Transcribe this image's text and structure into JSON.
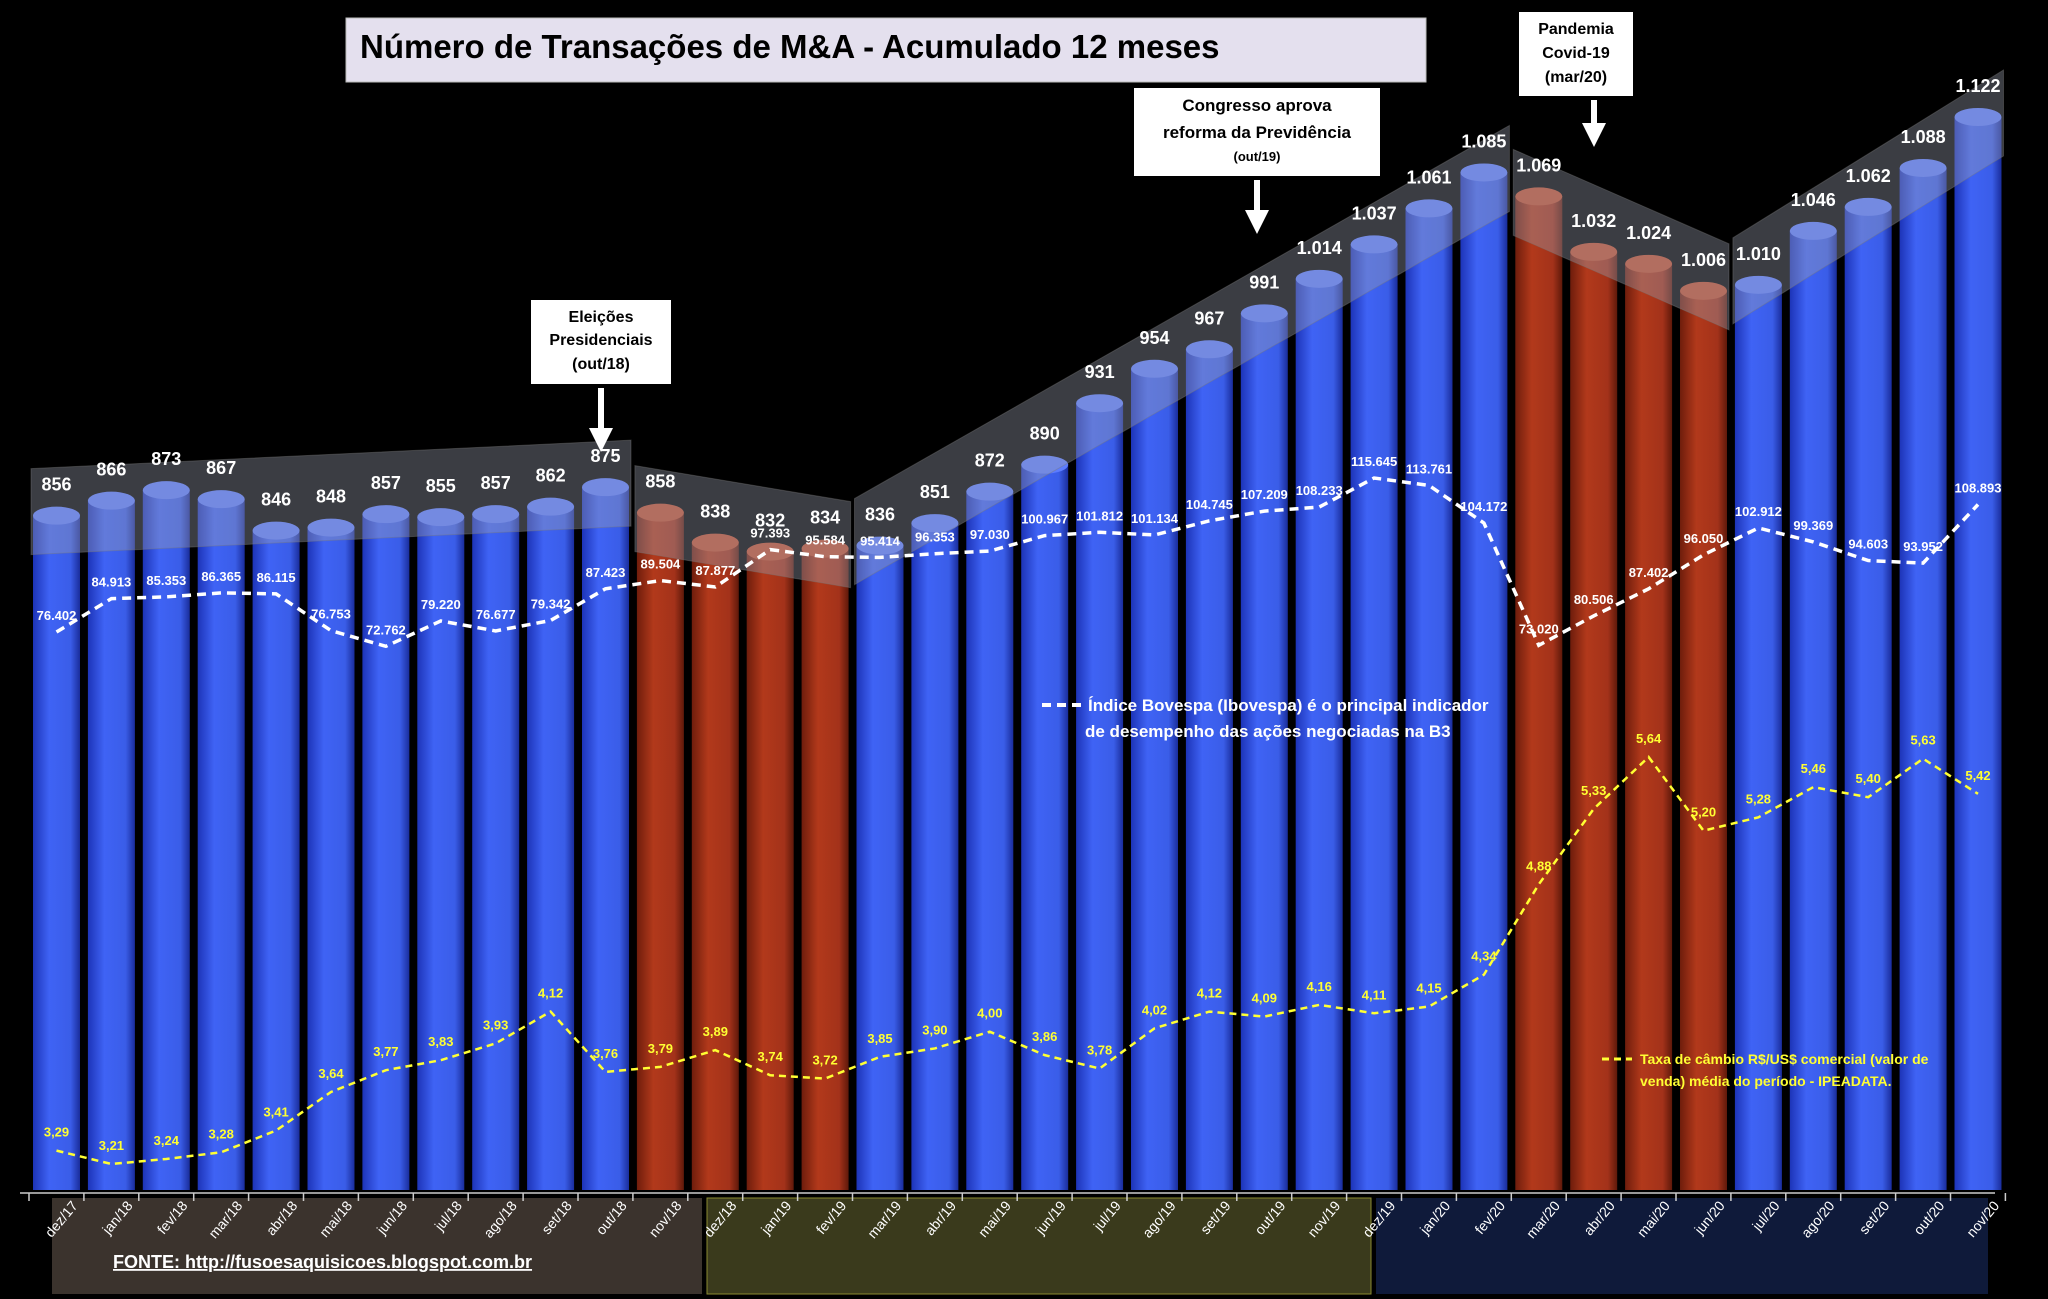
{
  "chart_data": {
    "type": "bar",
    "title": "Número de Transações de M&A - Acumulado 12 meses",
    "categories": [
      "dez/17",
      "jan/18",
      "fev/18",
      "mar/18",
      "abr/18",
      "mai/18",
      "jun/18",
      "jul/18",
      "ago/18",
      "set/18",
      "out/18",
      "nov/18",
      "dez/18",
      "jan/19",
      "fev/19",
      "mar/19",
      "abr/19",
      "mai/19",
      "jun/19",
      "jul/19",
      "ago/19",
      "set/19",
      "out/19",
      "nov/19",
      "dez/19",
      "jan/20",
      "fev/20",
      "mar/20",
      "abr/20",
      "mai/20",
      "jun/20",
      "jul/20",
      "ago/20",
      "set/20",
      "out/20",
      "nov/20"
    ],
    "bar_labels": [
      "856",
      "866",
      "873",
      "867",
      "846",
      "848",
      "857",
      "855",
      "857",
      "862",
      "875",
      "858",
      "838",
      "832",
      "834",
      "836",
      "851",
      "872",
      "890",
      "931",
      "954",
      "967",
      "991",
      "1.014",
      "1.037",
      "1.061",
      "1.085",
      "1.069",
      "1.032",
      "1.024",
      "1.006",
      "1.010",
      "1.046",
      "1.062",
      "1.088",
      "1.122"
    ],
    "bar_values": [
      856,
      866,
      873,
      867,
      846,
      848,
      857,
      855,
      857,
      862,
      875,
      858,
      838,
      832,
      834,
      836,
      851,
      872,
      890,
      931,
      954,
      967,
      991,
      1014,
      1037,
      1061,
      1085,
      1069,
      1032,
      1024,
      1006,
      1010,
      1046,
      1062,
      1088,
      1122
    ],
    "bar_colors": [
      "blue",
      "blue",
      "blue",
      "blue",
      "blue",
      "blue",
      "blue",
      "blue",
      "blue",
      "blue",
      "blue",
      "red",
      "red",
      "red",
      "red",
      "blue",
      "blue",
      "blue",
      "blue",
      "blue",
      "blue",
      "blue",
      "blue",
      "blue",
      "blue",
      "blue",
      "blue",
      "red",
      "red",
      "red",
      "red",
      "blue",
      "blue",
      "blue",
      "blue",
      "blue"
    ],
    "bar_ylim": [
      0,
      1122
    ],
    "series": [
      {
        "name": "Índice Bovespa (Ibovespa)",
        "legend": [
          "Índice Bovespa (Ibovespa)  é o principal indicador",
          "de desempenho das ações negociadas na B3"
        ],
        "values": [
          76402,
          84913,
          85353,
          86365,
          86115,
          76753,
          72762,
          79220,
          76677,
          79342,
          87423,
          89504,
          87877,
          97393,
          95584,
          95414,
          96353,
          97030,
          100967,
          101812,
          101134,
          104745,
          107209,
          108233,
          115645,
          113761,
          104172,
          73020,
          80506,
          87402,
          96050,
          102912,
          99369,
          94603,
          93952,
          108893
        ],
        "labels": [
          "76.402",
          "84.913",
          "85.353",
          "86.365",
          "86.115",
          "76.753",
          "72.762",
          "79.220",
          "76.677",
          "79.342",
          "87.423",
          "89.504",
          "87.877",
          "97.393",
          "95.584",
          "95.414",
          "96.353",
          "97.030",
          "100.967",
          "101.812",
          "101.134",
          "104.745",
          "107.209",
          "108.233",
          "115.645",
          "113.761",
          "104.172",
          "73.020",
          "80.506",
          "87.402",
          "96.050",
          "102.912",
          "99.369",
          "94.603",
          "93.952",
          "108.893"
        ],
        "color": "#ffffff"
      },
      {
        "name": "Taxa de câmbio R$/US$ comercial",
        "legend": [
          "Taxa de câmbio R$/US$ comercial (valor de",
          "venda) média do período - IPEADATA."
        ],
        "values": [
          3.29,
          3.21,
          3.24,
          3.28,
          3.41,
          3.64,
          3.77,
          3.83,
          3.93,
          4.12,
          3.76,
          3.79,
          3.89,
          3.74,
          3.72,
          3.85,
          3.9,
          4.0,
          3.86,
          3.78,
          4.02,
          4.12,
          4.09,
          4.16,
          4.11,
          4.15,
          4.34,
          4.88,
          5.33,
          5.64,
          5.2,
          5.28,
          5.46,
          5.4,
          5.63,
          5.42
        ],
        "labels": [
          "3,29",
          "3,21",
          "3,24",
          "3,28",
          "3,41",
          "3,64",
          "3,77",
          "3,83",
          "3,93",
          "4,12",
          "3,76",
          "3,79",
          "3,89",
          "3,74",
          "3,72",
          "3,85",
          "3,90",
          "4,00",
          "3,86",
          "3,78",
          "4,02",
          "4,12",
          "4,09",
          "4,16",
          "4,11",
          "4,15",
          "4,34",
          "4,88",
          "5,33",
          "5,64",
          "5,20",
          "5,28",
          "5,46",
          "5,40",
          "5,63",
          "5,42"
        ],
        "color": "#ffff33"
      }
    ],
    "annotations": [
      {
        "lines": [
          "Eleições",
          "Presidenciais",
          "(out/18)"
        ],
        "month": "out/18"
      },
      {
        "lines": [
          "Congresso aprova",
          "reforma da Previdência",
          "(out/19)"
        ],
        "month": "out/19"
      },
      {
        "lines": [
          "Pandemia",
          "Covid-19",
          "(mar/20)"
        ],
        "month": "mar/20"
      }
    ],
    "source": "FONTE: http://fusoesaquisicoes.blogspot.com.br"
  },
  "colors": {
    "background": "#000000",
    "bar_blue": "#3a5ff0",
    "bar_blue_dark": "#1f3cc4",
    "bar_red": "#a8331a",
    "bar_red_dark": "#7a2210",
    "ibov_line": "#ffffff",
    "fx_line": "#ffff33",
    "band_2018": "#3b332d",
    "band_2019": "#3a3a1c",
    "band_2020": "#0f1a3a"
  }
}
